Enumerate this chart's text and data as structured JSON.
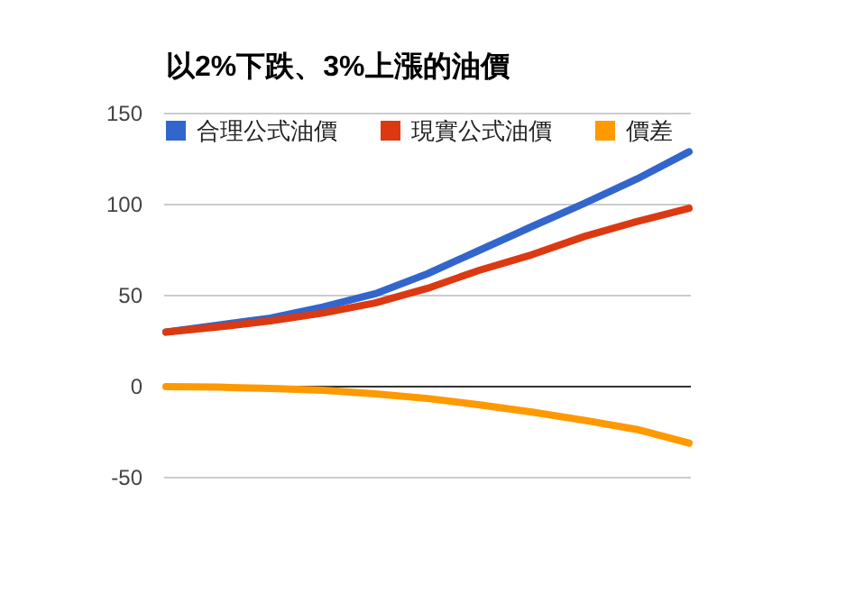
{
  "chart_data": {
    "type": "line",
    "title": "以2%下跌、3%上漲的油價",
    "categories": [
      null,
      null,
      null,
      null,
      null,
      null,
      null,
      null,
      null,
      null,
      null
    ],
    "series": [
      {
        "name": "合理公式油價",
        "color": "#3366cc",
        "values": [
          30,
          33.8,
          37.7,
          43.7,
          51,
          62,
          75,
          88,
          100.7,
          114,
          129
        ]
      },
      {
        "name": "現實公式油價",
        "color": "#dc3912",
        "values": [
          30,
          32.8,
          36.1,
          40.4,
          46,
          54,
          64,
          72.5,
          82.5,
          90.7,
          98
        ]
      },
      {
        "name": "價差",
        "color": "#ff9900",
        "values": [
          0,
          -0.3,
          -1,
          -2,
          -4,
          -6.5,
          -10,
          -14,
          -18.5,
          -23.5,
          -31
        ]
      }
    ],
    "ylim": [
      -50,
      150
    ],
    "yticks": [
      -50,
      0,
      50,
      100,
      150
    ],
    "grid": "y",
    "legend": "top",
    "marker": "none",
    "line_style": "solid"
  }
}
